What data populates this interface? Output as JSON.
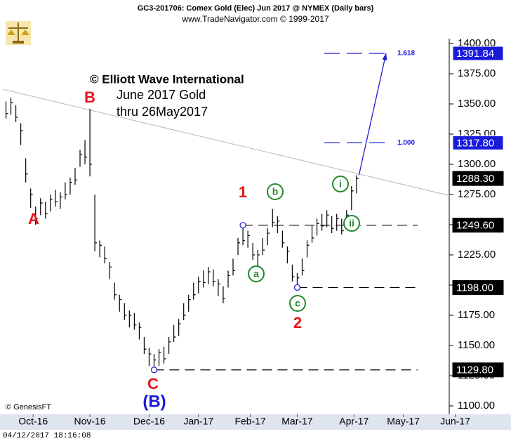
{
  "chart_data": {
    "type": "ohlc",
    "title": "GC3-201706:  Comex Gold (Elec) Jun 2017 @ NYMEX  (Daily bars)",
    "subtitle": "www.TradeNavigator.com © 1999-2017",
    "copyright": "© Elliott Wave International",
    "caption_lines": [
      "June 2017 Gold",
      "thru 26May2017"
    ],
    "source": "© GenesisFT",
    "timestamp": "04/12/2017 18:16:08",
    "color": "#000000",
    "x": [
      1,
      3,
      5,
      7,
      9,
      11,
      13,
      15,
      17,
      19,
      21,
      23,
      25,
      27,
      29,
      31,
      33,
      35,
      37,
      39,
      41,
      43,
      45,
      47,
      49,
      51,
      53,
      55,
      57,
      59,
      61,
      63,
      65,
      67,
      69,
      71,
      73,
      75,
      77,
      79,
      81,
      83,
      85,
      87,
      89,
      91,
      93,
      95,
      97,
      99,
      101,
      103,
      105,
      107,
      109,
      111,
      113,
      115,
      117,
      119,
      121,
      123,
      125,
      127,
      129,
      131,
      133,
      135,
      137,
      139,
      141,
      143
    ],
    "series": [
      {
        "name": "High",
        "values": [
          1352,
          1355,
          1349,
          1334,
          1305,
          1280,
          1265,
          1272,
          1269,
          1275,
          1279,
          1277,
          1285,
          1289,
          1297,
          1312,
          1320,
          1346,
          1275,
          1237,
          1232,
          1219,
          1202,
          1192,
          1185,
          1179,
          1177,
          1169,
          1157,
          1148,
          1143,
          1147,
          1149,
          1157,
          1167,
          1172,
          1185,
          1192,
          1202,
          1207,
          1212,
          1215,
          1213,
          1205,
          1199,
          1212,
          1222,
          1239,
          1250,
          1245,
          1235,
          1229,
          1239,
          1247,
          1263,
          1257,
          1245,
          1232,
          1217,
          1210,
          1222,
          1237,
          1249,
          1255,
          1259,
          1262,
          1257,
          1259,
          1255,
          1262,
          1282,
          1291
        ]
      },
      {
        "name": "Low",
        "values": [
          1338,
          1341,
          1335,
          1316,
          1285,
          1264,
          1250,
          1258,
          1255,
          1261,
          1265,
          1263,
          1271,
          1275,
          1283,
          1298,
          1300,
          1290,
          1228,
          1223,
          1218,
          1205,
          1188,
          1178,
          1171,
          1165,
          1163,
          1155,
          1143,
          1133,
          1130,
          1133,
          1135,
          1143,
          1153,
          1158,
          1171,
          1178,
          1188,
          1193,
          1198,
          1201,
          1199,
          1191,
          1185,
          1198,
          1208,
          1225,
          1233,
          1231,
          1221,
          1215,
          1225,
          1233,
          1248,
          1243,
          1231,
          1218,
          1203,
          1198,
          1208,
          1223,
          1235,
          1241,
          1245,
          1248,
          1243,
          1245,
          1242,
          1248,
          1262,
          1276
        ]
      },
      {
        "name": "Close",
        "values": [
          1342,
          1351,
          1339,
          1328,
          1292,
          1275,
          1255,
          1268,
          1259,
          1271,
          1269,
          1273,
          1275,
          1285,
          1287,
          1308,
          1306,
          1300,
          1235,
          1233,
          1222,
          1215,
          1192,
          1188,
          1175,
          1175,
          1167,
          1165,
          1147,
          1143,
          1138,
          1144,
          1139,
          1153,
          1157,
          1168,
          1175,
          1188,
          1192,
          1203,
          1202,
          1211,
          1203,
          1201,
          1189,
          1208,
          1212,
          1235,
          1237,
          1241,
          1225,
          1225,
          1229,
          1243,
          1252,
          1253,
          1235,
          1228,
          1207,
          1206,
          1212,
          1233,
          1239,
          1251,
          1249,
          1258,
          1247,
          1255,
          1245,
          1258,
          1278,
          1288.3
        ]
      }
    ],
    "xlim": [
      0,
      184
    ],
    "xticks": [
      {
        "value": 12,
        "label": "Oct-16"
      },
      {
        "value": 35,
        "label": "Nov-16"
      },
      {
        "value": 59,
        "label": "Dec-16"
      },
      {
        "value": 79,
        "label": "Jan-17"
      },
      {
        "value": 100,
        "label": "Feb-17"
      },
      {
        "value": 119,
        "label": "Mar-17"
      },
      {
        "value": 142,
        "label": "Apr-17"
      },
      {
        "value": 162,
        "label": "May-17"
      },
      {
        "value": 183,
        "label": "Jun-17"
      }
    ],
    "ylim": [
      1100,
      1400
    ],
    "yticks": [
      {
        "value": 1100,
        "label": "1100.00"
      },
      {
        "value": 1125,
        "label": "1125.00"
      },
      {
        "value": 1150,
        "label": "1150.00"
      },
      {
        "value": 1175,
        "label": "1175.00"
      },
      {
        "value": 1200,
        "label": "1200.00"
      },
      {
        "value": 1225,
        "label": "1225.00"
      },
      {
        "value": 1250,
        "label": "1250.00"
      },
      {
        "value": 1275,
        "label": "1275.00"
      },
      {
        "value": 1300,
        "label": "1300.00"
      },
      {
        "value": 1325,
        "label": "1325.00"
      },
      {
        "value": 1350,
        "label": "1350.00"
      },
      {
        "value": 1375,
        "label": "1375.00"
      },
      {
        "value": 1400,
        "label": "1400.00"
      }
    ],
    "price_markers": [
      {
        "value": 1391.84,
        "label": "1391.84",
        "color": "#1a1adb"
      },
      {
        "value": 1317.8,
        "label": "1317.80",
        "color": "#1a1adb"
      },
      {
        "value": 1288.3,
        "label": "1288.30",
        "color": "#000000"
      },
      {
        "value": 1249.6,
        "label": "1249.60",
        "color": "#000000"
      },
      {
        "value": 1198,
        "label": "1198.00",
        "color": "#000000"
      },
      {
        "value": 1129.8,
        "label": "1129.80",
        "color": "#000000"
      }
    ],
    "fib_levels": [
      {
        "value": 1391.84,
        "label": "1.618"
      },
      {
        "value": 1317.8,
        "label": "1.000"
      }
    ],
    "pivots": {
      "x": [
        61,
        97,
        119
      ],
      "values": [
        1129.8,
        1249.6,
        1198
      ]
    },
    "trendline": {
      "x": [
        0,
        181
      ],
      "values": [
        1362,
        1274
      ]
    },
    "projection": {
      "x": [
        144,
        155
      ],
      "values": [
        1291,
        1391.84
      ]
    },
    "annotations": [
      {
        "text": "A",
        "color": "#e8141a"
      },
      {
        "text": "B",
        "color": "#e8141a"
      },
      {
        "text": "C",
        "color": "#e8141a"
      },
      {
        "text": "(B)",
        "color": "#1a1adb"
      },
      {
        "text": "1",
        "color": "#e8141a"
      },
      {
        "text": "2",
        "color": "#e8141a"
      },
      {
        "text": "a",
        "color": "#1f8a2a",
        "circled": true
      },
      {
        "text": "b",
        "color": "#1f8a2a",
        "circled": true
      },
      {
        "text": "c",
        "color": "#1f8a2a",
        "circled": true
      },
      {
        "text": "i",
        "color": "#1f8a2a",
        "circled": true
      },
      {
        "text": "ii",
        "color": "#1f8a2a",
        "circled": true
      }
    ]
  }
}
